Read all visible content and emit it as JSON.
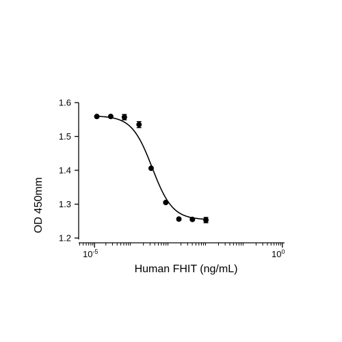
{
  "chart_data": {
    "type": "scatter",
    "title": "",
    "xlabel": "Human FHIT (ng/mL)",
    "ylabel": "OD 450mm",
    "x_scale": "log",
    "xlim": [
      1e-05,
      1
    ],
    "ylim": [
      1.2,
      1.6
    ],
    "x_ticks": [
      {
        "value": 1e-05,
        "base": "10",
        "exponent": "-5"
      },
      {
        "value": 1,
        "base": "10",
        "exponent": "0"
      }
    ],
    "y_ticks": [
      {
        "value": 1.2,
        "label": "1.2"
      },
      {
        "value": 1.3,
        "label": "1.3"
      },
      {
        "value": 1.4,
        "label": "1.4"
      },
      {
        "value": 1.5,
        "label": "1.5"
      },
      {
        "value": 1.6,
        "label": "1.6"
      }
    ],
    "grid": false,
    "series": [
      {
        "points": [
          {
            "x": 1.15e-05,
            "y": 1.559,
            "err": 0.003
          },
          {
            "x": 2.7e-05,
            "y": 1.559,
            "err": 0.003
          },
          {
            "x": 6.23e-05,
            "y": 1.557,
            "err": 0.008
          },
          {
            "x": 0.000153,
            "y": 1.535,
            "err": 0.009
          },
          {
            "x": 0.000321,
            "y": 1.406,
            "err": 0.003
          },
          {
            "x": 0.000787,
            "y": 1.305,
            "err": 0.003
          },
          {
            "x": 0.00176,
            "y": 1.256,
            "err": 0.003
          },
          {
            "x": 0.00403,
            "y": 1.255,
            "err": 0.003
          },
          {
            "x": 0.00924,
            "y": 1.253,
            "err": 0.008
          }
        ]
      }
    ],
    "fit": {
      "type": "four-parameter-logistic",
      "top": 1.561,
      "bottom": 1.254,
      "ec50": 0.000343,
      "hill": 1.6
    }
  },
  "colors": {
    "axis": "#000000",
    "marker": "#000000",
    "curve": "#000000",
    "background": "#ffffff"
  }
}
